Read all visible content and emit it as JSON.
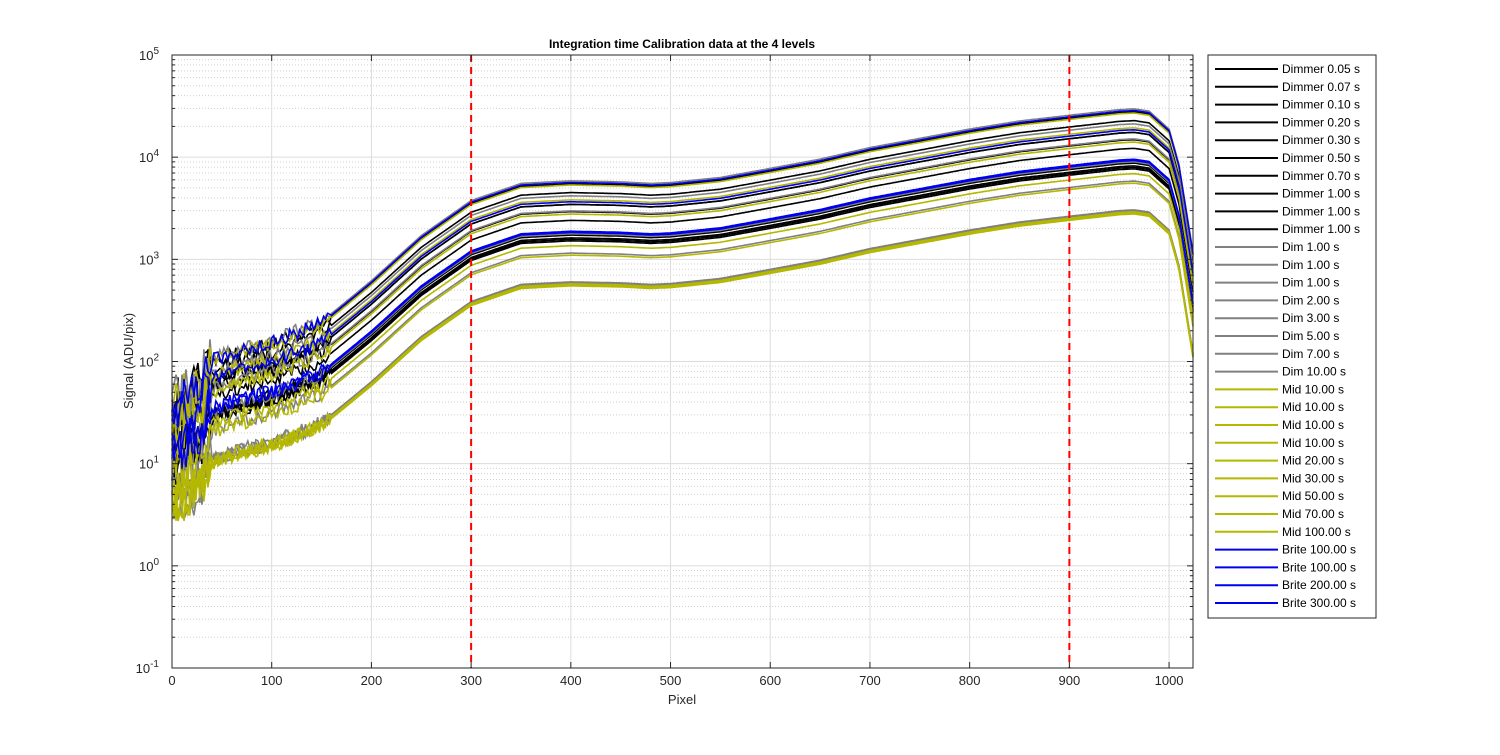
{
  "chart_data": {
    "type": "line",
    "title": "Integration time Calibration data at the 4 levels",
    "xlabel": "Pixel",
    "ylabel": "Signal (ADU/pix)",
    "xlim": [
      0,
      1024
    ],
    "ylim": [
      0.1,
      100000
    ],
    "yscale": "log",
    "grid": true,
    "minor_grid": true,
    "legend_position": "outside-right",
    "x_ticks": [
      "0",
      "100",
      "200",
      "300",
      "400",
      "500",
      "600",
      "700",
      "800",
      "900",
      "1000"
    ],
    "y_ticks": [
      {
        "base": "10",
        "exp": "-1"
      },
      {
        "base": "10",
        "exp": "0"
      },
      {
        "base": "10",
        "exp": "1"
      },
      {
        "base": "10",
        "exp": "2"
      },
      {
        "base": "10",
        "exp": "3"
      },
      {
        "base": "10",
        "exp": "4"
      },
      {
        "base": "10",
        "exp": "5"
      }
    ],
    "vlines": [
      {
        "x": 300,
        "color": "#ff0000",
        "style": "dashed"
      },
      {
        "x": 900,
        "color": "#ff0000",
        "style": "dashed"
      }
    ],
    "profile": {
      "x": [
        0,
        30,
        36,
        60,
        100,
        150,
        200,
        250,
        300,
        350,
        400,
        450,
        480,
        500,
        550,
        600,
        650,
        700,
        750,
        800,
        850,
        900,
        950,
        965,
        980,
        1000,
        1010,
        1024
      ],
      "relative_signal": [
        0.0035,
        0.0057,
        0.0093,
        0.0113,
        0.0141,
        0.0219,
        0.0551,
        0.1525,
        0.3356,
        0.4939,
        0.5232,
        0.5114,
        0.4939,
        0.5036,
        0.5652,
        0.6936,
        0.8535,
        1.1085,
        1.3636,
        1.6816,
        2.0163,
        2.2947,
        2.6041,
        2.6512,
        2.5195,
        1.6816,
        0.7547,
        0.1042
      ]
    },
    "series": [
      {
        "name": "Dimmer 0.05 s",
        "color": "#000000",
        "scale": 3.3
      },
      {
        "name": "Dimmer 0.07 s",
        "color": "#000000",
        "scale": 4.6
      },
      {
        "name": "Dimmer 0.10 s",
        "color": "#000000",
        "scale": 6.6
      },
      {
        "name": "Dimmer 0.20 s",
        "color": "#000000",
        "scale": 8.6
      },
      {
        "name": "Dimmer 0.30 s",
        "color": "#000000",
        "scale": 10.5
      },
      {
        "name": "Dimmer 0.50 s",
        "color": "#000000",
        "scale": 6.6
      },
      {
        "name": "Dimmer 0.70 s",
        "color": "#000000",
        "scale": 5.6
      },
      {
        "name": "Dimmer 1.00 s",
        "color": "#000000",
        "scale": 3.0
      },
      {
        "name": "Dimmer 1.00 s",
        "color": "#000000",
        "scale": 2.9
      },
      {
        "name": "Dimmer 1.00 s",
        "color": "#000000",
        "scale": 3.1
      },
      {
        "name": "Dim 1.00 s",
        "color": "#808080",
        "scale": 1.15
      },
      {
        "name": "Dim 1.00 s",
        "color": "#808080",
        "scale": 1.1
      },
      {
        "name": "Dim 1.00 s",
        "color": "#808080",
        "scale": 1.12
      },
      {
        "name": "Dim 2.00 s",
        "color": "#808080",
        "scale": 2.2
      },
      {
        "name": "Dim 3.00 s",
        "color": "#808080",
        "scale": 3.4
      },
      {
        "name": "Dim 5.00 s",
        "color": "#808080",
        "scale": 5.7
      },
      {
        "name": "Dim 7.00 s",
        "color": "#808080",
        "scale": 8.0
      },
      {
        "name": "Dim 10.00 s",
        "color": "#808080",
        "scale": 11.2
      },
      {
        "name": "Mid 10.00 s",
        "color": "#b5b800",
        "scale": 1.08
      },
      {
        "name": "Mid 10.00 s",
        "color": "#b5b800",
        "scale": 1.05
      },
      {
        "name": "Mid 10.00 s",
        "color": "#b5b800",
        "scale": 1.1
      },
      {
        "name": "Mid 10.00 s",
        "color": "#b5b800",
        "scale": 1.06
      },
      {
        "name": "Mid 20.00 s",
        "color": "#b5b800",
        "scale": 2.1
      },
      {
        "name": "Mid 30.00 s",
        "color": "#b5b800",
        "scale": 2.6
      },
      {
        "name": "Mid 50.00 s",
        "color": "#b5b800",
        "scale": 5.3
      },
      {
        "name": "Mid 70.00 s",
        "color": "#b5b800",
        "scale": 7.3
      },
      {
        "name": "Mid 100.00 s",
        "color": "#b5b800",
        "scale": 10.2
      },
      {
        "name": "Brite 100.00 s",
        "color": "#0000ee",
        "scale": 3.5
      },
      {
        "name": "Brite 100.00 s",
        "color": "#0000ee",
        "scale": 3.6
      },
      {
        "name": "Brite 200.00 s",
        "color": "#0000ee",
        "scale": 7.0
      },
      {
        "name": "Brite 300.00 s",
        "color": "#0000ee",
        "scale": 10.8
      }
    ]
  }
}
